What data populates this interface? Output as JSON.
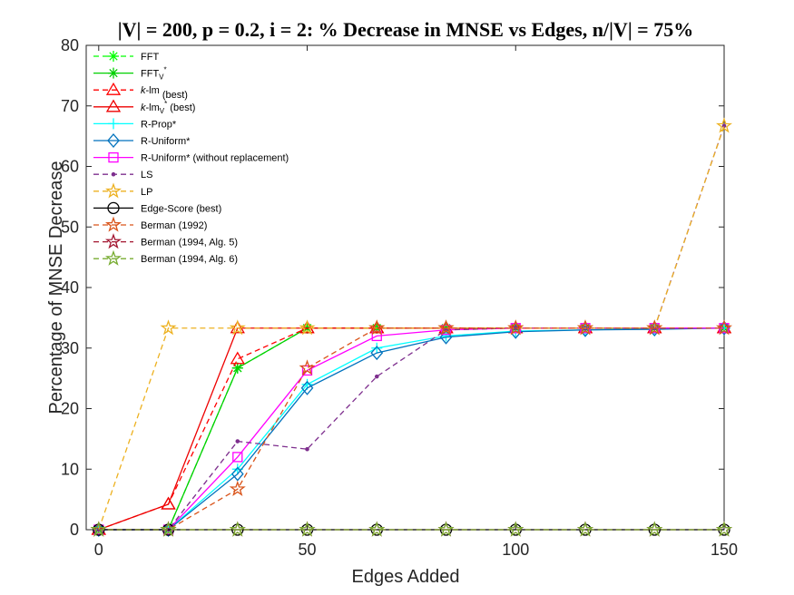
{
  "chart_data": {
    "type": "line",
    "title": "|V| = 200, p = 0.2, i = 2: % Decrease in MNSE vs Edges, n/|V| = 75%",
    "xlabel": "Edges Added",
    "ylabel": "Percentage of MNSE Decrease",
    "xlim": [
      -3,
      150
    ],
    "ylim": [
      0,
      80
    ],
    "xticks": [
      0,
      50,
      100,
      150
    ],
    "yticks": [
      0,
      10,
      20,
      30,
      40,
      50,
      60,
      70,
      80
    ],
    "grid": false,
    "legend_position": "top-left",
    "x": [
      0,
      16.7,
      33.3,
      50,
      66.7,
      83.3,
      100,
      116.7,
      133.3,
      150
    ],
    "series": [
      {
        "name": "FFT",
        "legend_main": "FFT",
        "legend_sub": "",
        "legend_sup": "",
        "legend_suffix": "",
        "color": "#00ff00",
        "dash": "6,4",
        "marker": "asterisk",
        "values": [
          0,
          0,
          26.7,
          33.3,
          33.3,
          33.3,
          33.3,
          33.3,
          33.3,
          33.3
        ]
      },
      {
        "name": "FFTV*",
        "legend_main": "FFT",
        "legend_sub": "V",
        "legend_sup": "*",
        "legend_suffix": "",
        "color": "#00d000",
        "dash": "",
        "marker": "asterisk",
        "values": [
          0,
          0,
          26.7,
          33.3,
          33.3,
          33.3,
          33.3,
          33.3,
          33.3,
          33.3
        ]
      },
      {
        "name": "k-lm (best)",
        "legend_main": "k-lm",
        "legend_sub": "",
        "legend_sup": "",
        "legend_suffix": " (best)",
        "color": "#ff0000",
        "dash": "6,4",
        "marker": "triangle",
        "values": [
          0,
          4.2,
          28.2,
          33.3,
          33.3,
          33.3,
          33.3,
          33.3,
          33.3,
          33.3
        ]
      },
      {
        "name": "k-lmV* (best)",
        "legend_main": "k-lm",
        "legend_sub": "V",
        "legend_sup": "*",
        "legend_suffix": " (best)",
        "color": "#ee0000",
        "dash": "",
        "marker": "triangle",
        "values": [
          0,
          4.2,
          33.3,
          33.3,
          33.3,
          33.3,
          33.3,
          33.3,
          33.3,
          33.3
        ]
      },
      {
        "name": "R-Prop*",
        "legend_main": "R-Prop*",
        "legend_sub": "",
        "legend_sup": "",
        "legend_suffix": "",
        "color": "#00ffff",
        "dash": "",
        "marker": "plus",
        "values": [
          0,
          0,
          10.0,
          24.0,
          30.0,
          32.0,
          32.8,
          33.0,
          33.2,
          33.3
        ]
      },
      {
        "name": "R-Uniform*",
        "legend_main": "R-Uniform*",
        "legend_sub": "",
        "legend_sup": "",
        "legend_suffix": "",
        "color": "#0072bd",
        "dash": "",
        "marker": "diamond",
        "values": [
          0,
          0,
          9.2,
          23.4,
          29.2,
          31.8,
          32.7,
          33.0,
          33.1,
          33.3
        ]
      },
      {
        "name": "R-Uniform* (without replacement)",
        "legend_main": "R-Uniform* (without replacement)",
        "legend_sub": "",
        "legend_sup": "",
        "legend_suffix": "",
        "color": "#ff00ff",
        "dash": "",
        "marker": "square",
        "values": [
          0,
          0,
          12.0,
          26.3,
          32.0,
          33.0,
          33.3,
          33.3,
          33.3,
          33.3
        ]
      },
      {
        "name": "LS",
        "legend_main": "LS",
        "legend_sub": "",
        "legend_sup": "",
        "legend_suffix": "",
        "color": "#7e2f8e",
        "dash": "6,4",
        "marker": "dot",
        "values": [
          0,
          0,
          14.6,
          13.3,
          25.3,
          33.0,
          33.3,
          33.3,
          33.3,
          66.7
        ]
      },
      {
        "name": "LP",
        "legend_main": "LP",
        "legend_sub": "",
        "legend_sup": "",
        "legend_suffix": "",
        "color": "#edb120",
        "dash": "6,4",
        "marker": "pentagram",
        "values": [
          0,
          33.3,
          33.3,
          33.3,
          33.3,
          33.3,
          33.3,
          33.3,
          33.3,
          66.7
        ]
      },
      {
        "name": "Edge-Score (best)",
        "legend_main": "Edge-Score (best)",
        "legend_sub": "",
        "legend_sup": "",
        "legend_suffix": "",
        "color": "#000000",
        "dash": "",
        "marker": "circle",
        "values": [
          0,
          0,
          0,
          0,
          0,
          0,
          0,
          0,
          0,
          0
        ]
      },
      {
        "name": "Berman (1992)",
        "legend_main": "Berman (1992)",
        "legend_sub": "",
        "legend_sup": "",
        "legend_suffix": "",
        "color": "#d95319",
        "dash": "6,4",
        "marker": "pentagram",
        "values": [
          0,
          0,
          6.7,
          26.7,
          33.3,
          33.3,
          33.3,
          33.3,
          33.3,
          33.3
        ]
      },
      {
        "name": "Berman (1994, Alg. 5)",
        "legend_main": "Berman (1994, Alg. 5)",
        "legend_sub": "",
        "legend_sup": "",
        "legend_suffix": "",
        "color": "#a2142f",
        "dash": "6,4",
        "marker": "pentagram",
        "values": [
          0,
          0,
          0,
          0,
          0,
          0,
          0,
          0,
          0,
          0
        ]
      },
      {
        "name": "Berman (1994, Alg. 6)",
        "legend_main": "Berman (1994, Alg. 6)",
        "legend_sub": "",
        "legend_sup": "",
        "legend_suffix": "",
        "color": "#77ac30",
        "dash": "6,4",
        "marker": "pentagram",
        "values": [
          0,
          0,
          0,
          0,
          0,
          0,
          0,
          0,
          0,
          0
        ]
      }
    ]
  }
}
